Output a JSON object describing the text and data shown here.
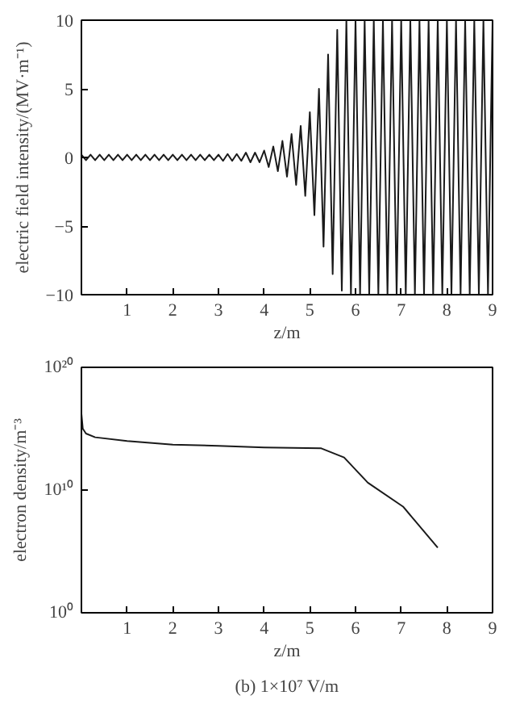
{
  "chart_data": [
    {
      "type": "line",
      "xlabel": "z/m",
      "ylabel": "electric field intensity/(MV·m⁻¹)",
      "xlim": [
        0,
        9
      ],
      "ylim": [
        -10,
        10
      ],
      "xticks": [
        1,
        2,
        3,
        4,
        5,
        6,
        7,
        8,
        9
      ],
      "yticks": [
        -10,
        -5,
        0,
        5,
        10
      ],
      "grid": false,
      "line_style": "solid",
      "series": [
        {
          "color": "#1a1a1a",
          "x": [
            0,
            0.1,
            0.2,
            0.3,
            0.4,
            0.5,
            0.6,
            0.7,
            0.8,
            0.9,
            1.0,
            1.1,
            1.2,
            1.3,
            1.4,
            1.5,
            1.6,
            1.7,
            1.8,
            1.9,
            2.0,
            2.1,
            2.2,
            2.3,
            2.4,
            2.5,
            2.6,
            2.7,
            2.8,
            2.9,
            3.0,
            3.1,
            3.2,
            3.3,
            3.4,
            3.5,
            3.6,
            3.7,
            3.8,
            3.9,
            4.0,
            4.1,
            4.2,
            4.3,
            4.4,
            4.5,
            4.6,
            4.7,
            4.8,
            4.9,
            5.0,
            5.1,
            5.2,
            5.3,
            5.4,
            5.5,
            5.6,
            5.7,
            5.8,
            5.9,
            6.0,
            6.1,
            6.2,
            6.3,
            6.4,
            6.5,
            6.6,
            6.7,
            6.8,
            6.9,
            7.0,
            7.1,
            7.2,
            7.3,
            7.4,
            7.5,
            7.6,
            7.7,
            7.8,
            7.9,
            8.0,
            8.1,
            8.2,
            8.3,
            8.4,
            8.5,
            8.6,
            8.7,
            8.8,
            8.9,
            9.0
          ],
          "values": [
            0.2,
            -0.2,
            0.2,
            -0.2,
            0.2,
            -0.2,
            0.2,
            -0.2,
            0.2,
            -0.2,
            0.2,
            -0.2,
            0.2,
            -0.2,
            0.2,
            -0.2,
            0.2,
            -0.2,
            0.2,
            -0.2,
            0.2,
            -0.2,
            0.2,
            -0.2,
            0.2,
            -0.2,
            0.2,
            -0.2,
            0.2,
            -0.2,
            0.2,
            -0.25,
            0.25,
            -0.25,
            0.25,
            -0.25,
            0.35,
            -0.35,
            0.35,
            -0.35,
            0.5,
            -0.7,
            0.8,
            -1.0,
            1.2,
            -1.4,
            1.7,
            -2.0,
            2.3,
            -2.8,
            3.3,
            -4.2,
            5.0,
            -6.5,
            7.5,
            -8.5,
            9.3,
            -9.7,
            10,
            -10,
            10,
            -10,
            10,
            -10,
            10,
            -10,
            10,
            -10,
            10,
            -10,
            10,
            -10,
            10,
            -10,
            10,
            -10,
            10,
            -10,
            10,
            -10,
            10,
            -10,
            10,
            -10,
            10,
            -10,
            10,
            -10,
            10,
            -10,
            10
          ]
        }
      ]
    },
    {
      "type": "line",
      "xlabel": "z/m",
      "ylabel": "electron density/m⁻³",
      "log": "y",
      "xlim": [
        0,
        9
      ],
      "ylim": [
        1,
        1e+20
      ],
      "xticks": [
        1,
        2,
        3,
        4,
        5,
        6,
        7,
        8,
        9
      ],
      "yticks": [
        {
          "value": 1,
          "label": "10⁰"
        },
        {
          "value": 10000000000.0,
          "label": "10¹⁰"
        },
        {
          "value": 1e+20,
          "label": "10²⁰"
        }
      ],
      "grid": false,
      "line_style": "solid",
      "annotations": [
        "(b) 1×10⁷ V/m"
      ],
      "series": [
        {
          "color": "#1a1a1a",
          "x": [
            0,
            0.03,
            0.1,
            0.3,
            1,
            2,
            3,
            4,
            5.25,
            5.75,
            6.27,
            7.04,
            7.8
          ],
          "values": [
            1.6e+16,
            1000000000000000.0,
            400000000000000.0,
            200000000000000.0,
            100000000000000.0,
            50000000000000.0,
            40000000000000.0,
            30000000000000.0,
            25000000000000.0,
            4500000000000.0,
            40000000000.0,
            450000000.0,
            200000.0
          ]
        }
      ]
    }
  ]
}
